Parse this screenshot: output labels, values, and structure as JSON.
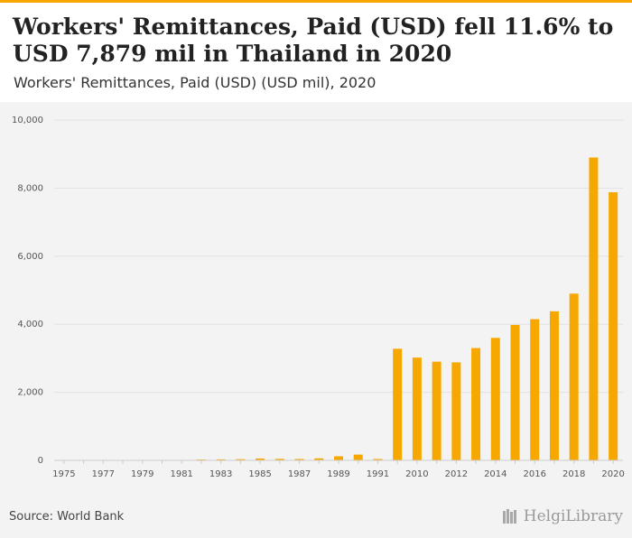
{
  "title": "Workers' Remittances, Paid (USD) fell 11.6% to USD 7,879 mil in Thailand in 2020",
  "subtitle": "Workers' Remittances, Paid (USD) (USD mil), 2020",
  "source": "Source: World Bank",
  "brand": "HelgiLibrary",
  "colors": {
    "bar": "#f7a800",
    "accent": "#f7a800"
  },
  "chart_data": {
    "type": "bar",
    "categories": [
      "1975",
      "1976",
      "1977",
      "1978",
      "1979",
      "1980",
      "1981",
      "1982",
      "1983",
      "1984",
      "1985",
      "1986",
      "1987",
      "1988",
      "1989",
      "1990",
      "1991",
      "2009",
      "2010",
      "2011",
      "2012",
      "2013",
      "2014",
      "2015",
      "2016",
      "2017",
      "2018",
      "2019",
      "2020"
    ],
    "x_tick_labels": [
      "1975",
      "",
      "1977",
      "",
      "1979",
      "",
      "1981",
      "",
      "1983",
      "",
      "1985",
      "",
      "1987",
      "",
      "1989",
      "",
      "1991",
      "",
      "2010",
      "",
      "2012",
      "",
      "2014",
      "",
      "2016",
      "",
      "2018",
      "",
      "2020"
    ],
    "values": [
      0,
      0,
      0,
      0,
      0,
      0,
      5,
      25,
      30,
      35,
      55,
      45,
      40,
      60,
      120,
      170,
      40,
      3280,
      3020,
      2900,
      2880,
      3300,
      3600,
      3980,
      4150,
      4380,
      4900,
      8900,
      7879
    ],
    "ylim": [
      0,
      10000
    ],
    "yticks": [
      0,
      2000,
      4000,
      6000,
      8000,
      10000
    ],
    "ytick_labels": [
      "0",
      "2,000",
      "4,000",
      "6,000",
      "8,000",
      "10,000"
    ],
    "xlabel": "",
    "ylabel": "",
    "grid": true
  }
}
